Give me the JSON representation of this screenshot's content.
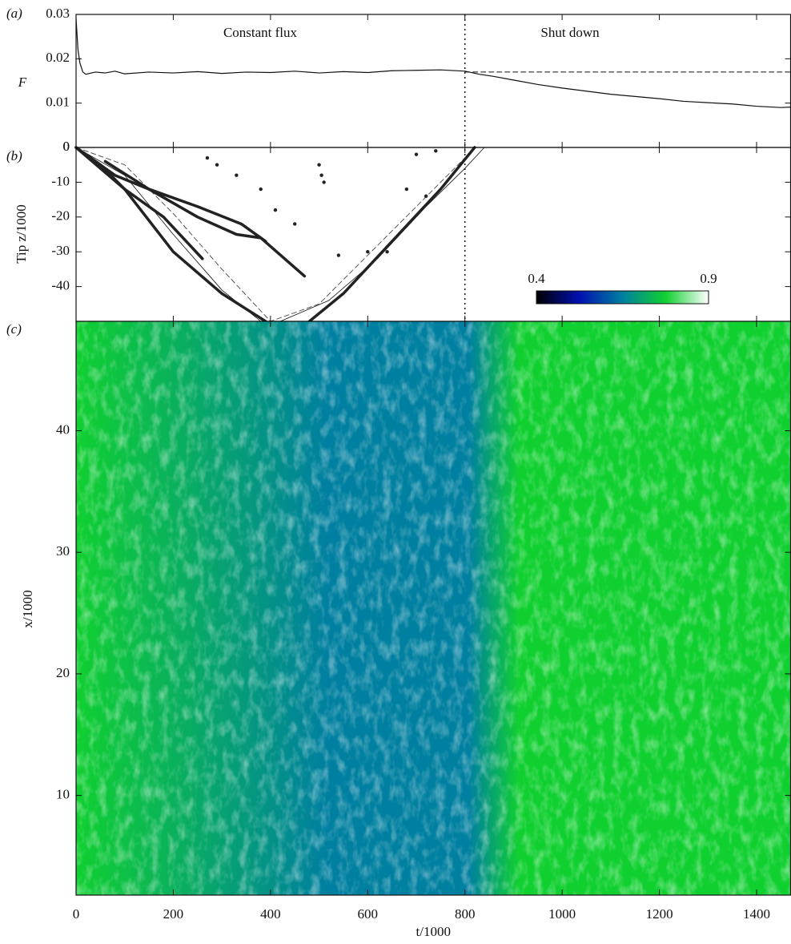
{
  "chart_data": [
    {
      "type": "line",
      "label": "(a)",
      "ylabel": "F",
      "xlim": [
        0,
        1470
      ],
      "xticks": [
        0,
        200,
        400,
        600,
        800,
        1000,
        1200,
        1400
      ],
      "ylim": [
        0,
        0.03
      ],
      "yticks": [
        0,
        0.01,
        0.02,
        0.03
      ],
      "annotations": [
        "Constant flux",
        "Shut down"
      ],
      "vline": 800,
      "series": [
        {
          "color": "#111111",
          "style": "solid",
          "x": [
            0,
            4,
            8,
            14,
            20,
            40,
            60,
            80,
            100,
            150,
            200,
            250,
            300,
            350,
            400,
            450,
            500,
            550,
            600,
            650,
            700,
            750,
            800,
            830,
            860,
            900,
            950,
            1000,
            1050,
            1100,
            1150,
            1200,
            1250,
            1300,
            1350,
            1400,
            1450,
            1470
          ],
          "values": [
            0.029,
            0.022,
            0.019,
            0.017,
            0.0165,
            0.017,
            0.0168,
            0.0172,
            0.0166,
            0.017,
            0.0168,
            0.0171,
            0.0167,
            0.017,
            0.0169,
            0.0172,
            0.0168,
            0.0171,
            0.0169,
            0.0173,
            0.0174,
            0.0175,
            0.0172,
            0.0165,
            0.016,
            0.0152,
            0.0142,
            0.0134,
            0.0127,
            0.012,
            0.0115,
            0.011,
            0.0104,
            0.0101,
            0.0098,
            0.0093,
            0.009,
            0.0091
          ]
        },
        {
          "color": "#111111",
          "style": "dashed",
          "x": [
            800,
            1470
          ],
          "values": [
            0.017,
            0.017
          ]
        }
      ]
    },
    {
      "type": "line",
      "label": "(b)",
      "ylabel": "Tip z/1000",
      "xlim": [
        0,
        1470
      ],
      "xticks": [
        0,
        200,
        400,
        600,
        800,
        1000,
        1200,
        1400
      ],
      "ylim": [
        -50,
        0
      ],
      "yticks": [
        0,
        -10,
        -20,
        -30,
        -40
      ],
      "series": [
        {
          "color": "#111111",
          "style": "thin",
          "x": [
            0,
            100,
            200,
            300,
            380,
            420,
            520,
            620,
            720,
            800,
            840
          ],
          "values": [
            0,
            -8,
            -25,
            -41,
            -50,
            -50,
            -44,
            -32,
            -17,
            -6,
            0
          ]
        },
        {
          "color": "#555555",
          "style": "dashed",
          "x": [
            0,
            100,
            200,
            300,
            400,
            500,
            600,
            700,
            800
          ],
          "values": [
            0,
            -5,
            -19,
            -35,
            -50,
            -45,
            -31,
            -17,
            -3
          ]
        },
        {
          "color": "#222222",
          "style": "thick",
          "x": [
            0,
            50,
            100,
            200,
            300,
            390
          ],
          "values": [
            0,
            -5,
            -12,
            -30,
            -42,
            -50
          ]
        },
        {
          "color": "#222222",
          "style": "thick",
          "x": [
            480,
            550,
            650,
            750,
            820
          ],
          "values": [
            -50,
            -42,
            -27,
            -12,
            0
          ]
        },
        {
          "color": "#222222",
          "style": "thick",
          "x": [
            60,
            150,
            250,
            330,
            380,
            470
          ],
          "values": [
            -4,
            -12,
            -20,
            -25,
            -26,
            -37
          ]
        },
        {
          "color": "#222222",
          "style": "thick",
          "x": [
            0,
            100,
            180,
            260
          ],
          "values": [
            0,
            -12,
            -20,
            -32
          ]
        },
        {
          "color": "#222222",
          "style": "thick",
          "x": [
            0,
            80,
            150,
            250,
            340,
            390
          ],
          "values": [
            0,
            -8,
            -12,
            -17,
            -22,
            -27
          ]
        },
        {
          "color": "#222222",
          "style": "dots",
          "x": [
            270,
            290,
            330,
            380,
            410,
            450,
            500,
            505,
            510,
            540,
            600,
            640,
            680,
            720,
            700,
            740
          ],
          "values": [
            -3,
            -5,
            -8,
            -12,
            -18,
            -22,
            -5,
            -8,
            -10,
            -31,
            -30,
            -30,
            -12,
            -14,
            -2,
            -1
          ]
        }
      ]
    },
    {
      "type": "heatmap",
      "label": "(c)",
      "ylabel": "x/1000",
      "xlabel": "t/1000",
      "xlim": [
        0,
        1470
      ],
      "xticks": [
        0,
        200,
        400,
        600,
        800,
        1000,
        1200,
        1400
      ],
      "ylim": [
        1.8,
        49
      ],
      "yticks": [
        10,
        20,
        30,
        40
      ],
      "colorbar": {
        "lim": [
          0.4,
          0.9
        ],
        "ticks": [
          0.4,
          0.9
        ],
        "colors": [
          "#000000",
          "#0010b0",
          "#0080a0",
          "#10d030",
          "#ffffff"
        ]
      }
    }
  ]
}
